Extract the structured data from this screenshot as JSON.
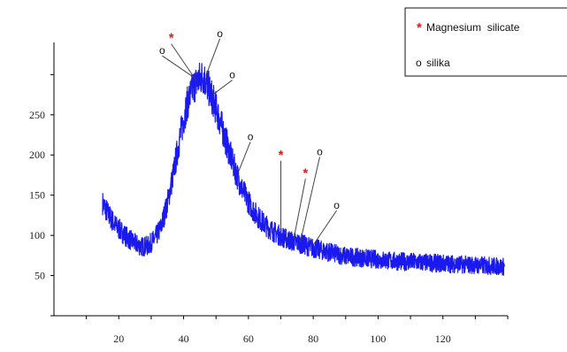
{
  "chart_data": {
    "type": "line",
    "title": "",
    "xlabel": "",
    "ylabel": "",
    "xlim": [
      0,
      140
    ],
    "ylim": [
      0,
      340
    ],
    "x_ticks": [
      20,
      40,
      60,
      80,
      100,
      120
    ],
    "y_ticks": [
      50,
      100,
      150,
      200,
      250
    ],
    "grid": false,
    "legend_position": "top-right",
    "series": [
      {
        "color": "#1a1aee",
        "x": [
          15,
          17,
          19,
          21,
          23,
          25,
          27,
          29,
          31,
          33,
          35,
          37,
          39,
          41,
          43,
          45,
          46,
          47,
          48,
          50,
          52,
          54,
          56,
          58,
          60,
          62,
          64,
          66,
          68,
          70,
          72,
          74,
          76,
          78,
          80,
          82,
          84,
          86,
          88,
          90,
          95,
          100,
          105,
          110,
          115,
          120,
          125,
          130,
          135,
          139
        ],
        "y": [
          140,
          125,
          112,
          104,
          96,
          90,
          86,
          87,
          95,
          110,
          140,
          180,
          225,
          262,
          285,
          295,
          298,
          290,
          280,
          258,
          232,
          205,
          180,
          158,
          142,
          128,
          118,
          110,
          104,
          99,
          95,
          92,
          90,
          87,
          84,
          82,
          80,
          78,
          76,
          74,
          72,
          70,
          68,
          67,
          66,
          65,
          64,
          63,
          62,
          61
        ]
      }
    ],
    "legend": [
      {
        "symbol": "*",
        "label": "Magnesium silicate"
      },
      {
        "symbol": "o",
        "label": "silika"
      }
    ],
    "annotations": [
      {
        "symbol": "*",
        "x": 44,
        "y": 292
      },
      {
        "symbol": "o",
        "x": 43,
        "y": 297
      },
      {
        "symbol": "o",
        "x": 47,
        "y": 300
      },
      {
        "symbol": "o",
        "x": 49,
        "y": 275
      },
      {
        "symbol": "o",
        "x": 57,
        "y": 180
      },
      {
        "symbol": "*",
        "x": 70,
        "y": 102
      },
      {
        "symbol": "*",
        "x": 74,
        "y": 96
      },
      {
        "symbol": "o",
        "x": 76,
        "y": 92
      },
      {
        "symbol": "o",
        "x": 80,
        "y": 88
      }
    ]
  },
  "legend": {
    "magnesium_marker": "*",
    "magnesium_label": "Magnesium  silicate",
    "silika_marker": "o",
    "silika_label": "silika"
  }
}
